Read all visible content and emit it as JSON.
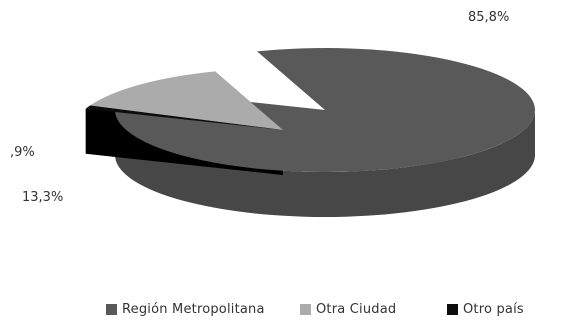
{
  "chart_data": {
    "type": "pie",
    "style": "3d-exploded",
    "slices": [
      {
        "label": "Región Metropolitana",
        "value": 85.8,
        "display": "85,8%",
        "color": "#595959",
        "side": "#474747",
        "exploded": false
      },
      {
        "label": "Otra Ciudad",
        "value": 13.3,
        "display": "13,3%",
        "color": "#ababab",
        "side": "#8c8c8c",
        "exploded": true
      },
      {
        "label": "Otro país",
        "value": 0.9,
        "display": ",9%",
        "color": "#0d0d0d",
        "side": "#000000",
        "exploded": true
      }
    ],
    "legend_position": "bottom"
  }
}
